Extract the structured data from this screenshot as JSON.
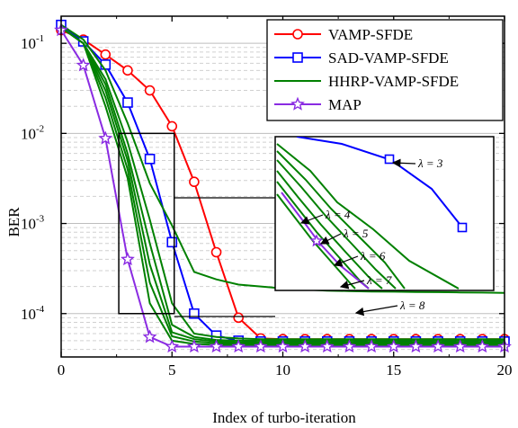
{
  "chart_data": {
    "type": "line",
    "title": "",
    "xlabel": "Index of turbo-iteration",
    "ylabel": "BER",
    "xlim": [
      0,
      20
    ],
    "ylim": [
      3.3e-05,
      0.2
    ],
    "yscale": "log",
    "grid": true,
    "legend_position": "top-right",
    "x_ticks": [
      0,
      5,
      10,
      15,
      20
    ],
    "y_ticks": [
      {
        "value": 0.1,
        "base": "10",
        "exp": "-1"
      },
      {
        "value": 0.01,
        "base": "10",
        "exp": "-2"
      },
      {
        "value": 0.001,
        "base": "10",
        "exp": "-3"
      },
      {
        "value": 0.0001,
        "base": "10",
        "exp": "-4"
      }
    ],
    "series": [
      {
        "name": "VAMP-SFDE",
        "color": "#ff0000",
        "marker": "circle",
        "x": [
          0,
          1,
          2,
          3,
          4,
          5,
          6,
          7,
          8,
          9,
          10,
          11,
          12,
          13,
          14,
          15,
          16,
          17,
          18,
          19,
          20
        ],
        "y": [
          0.14,
          0.11,
          0.075,
          0.05,
          0.03,
          0.012,
          0.0029,
          0.00048,
          9e-05,
          5.3e-05,
          5.2e-05,
          5.2e-05,
          5.2e-05,
          5.2e-05,
          5.2e-05,
          5.2e-05,
          5.2e-05,
          5.2e-05,
          5.2e-05,
          5.2e-05,
          5.2e-05
        ]
      },
      {
        "name": "SAD-VAMP-SFDE",
        "color": "#0000ff",
        "marker": "square",
        "x": [
          0,
          1,
          2,
          3,
          4,
          5,
          6,
          7,
          8,
          9,
          10,
          11,
          12,
          13,
          14,
          15,
          16,
          17,
          18,
          19,
          20
        ],
        "y": [
          0.16,
          0.105,
          0.058,
          0.022,
          0.0052,
          0.00062,
          0.0001,
          5.7e-05,
          5e-05,
          4.9e-05,
          4.9e-05,
          4.9e-05,
          4.9e-05,
          4.9e-05,
          4.9e-05,
          4.9e-05,
          4.9e-05,
          4.9e-05,
          4.9e-05,
          4.9e-05,
          4.9e-05
        ]
      },
      {
        "name": "HHRP-VAMP-SFDE",
        "color": "#008000",
        "marker": "none",
        "x": [
          0,
          1,
          2,
          3,
          4,
          5,
          6,
          7,
          8,
          9,
          10,
          11,
          12,
          13,
          14,
          15,
          16,
          17,
          18,
          19,
          20
        ],
        "y": [
          0.16,
          0.11,
          0.05,
          0.013,
          0.0028,
          0.00095,
          0.00029,
          0.00024,
          0.00021,
          0.0002,
          0.00019,
          0.000185,
          0.00018,
          0.000178,
          0.000176,
          0.000175,
          0.000174,
          0.000173,
          0.000172,
          0.000171,
          0.00017
        ]
      },
      {
        "name": "",
        "color": "#008000",
        "marker": "none",
        "x": [
          0,
          1,
          2,
          3,
          4,
          5,
          6,
          7,
          8,
          9,
          10,
          11,
          12,
          13,
          14,
          15,
          16,
          17,
          18,
          19,
          20
        ],
        "y": [
          0.15,
          0.1,
          0.04,
          0.008,
          0.0011,
          0.00013,
          6e-05,
          5.5e-05,
          5.3e-05,
          5.2e-05,
          5.2e-05,
          5.2e-05,
          5.2e-05,
          5.2e-05,
          5.2e-05,
          5.2e-05,
          5.2e-05,
          5.2e-05,
          5.2e-05,
          5.2e-05,
          5.2e-05
        ]
      },
      {
        "name": "",
        "color": "#008000",
        "marker": "none",
        "x": [
          0,
          1,
          2,
          3,
          4,
          5,
          6,
          7,
          8,
          9,
          10,
          11,
          12,
          13,
          14,
          15,
          16,
          17,
          18,
          19,
          20
        ],
        "y": [
          0.15,
          0.1,
          0.035,
          0.006,
          0.0006,
          7.5e-05,
          5.5e-05,
          5.1e-05,
          5e-05,
          5e-05,
          5e-05,
          5e-05,
          5e-05,
          5e-05,
          5e-05,
          5e-05,
          5e-05,
          5e-05,
          5e-05,
          5e-05,
          5e-05
        ]
      },
      {
        "name": "",
        "color": "#008000",
        "marker": "none",
        "x": [
          0,
          1,
          2,
          3,
          4,
          5,
          6,
          7,
          8,
          9,
          10,
          11,
          12,
          13,
          14,
          15,
          16,
          17,
          18,
          19,
          20
        ],
        "y": [
          0.15,
          0.1,
          0.03,
          0.005,
          0.00035,
          6.2e-05,
          5.2e-05,
          4.9e-05,
          4.8e-05,
          4.8e-05,
          4.8e-05,
          4.8e-05,
          4.8e-05,
          4.8e-05,
          4.8e-05,
          4.8e-05,
          4.8e-05,
          4.8e-05,
          4.8e-05,
          4.8e-05,
          4.8e-05
        ]
      },
      {
        "name": "",
        "color": "#008000",
        "marker": "none",
        "x": [
          0,
          1,
          2,
          3,
          4,
          5,
          6,
          7,
          8,
          9,
          10,
          11,
          12,
          13,
          14,
          15,
          16,
          17,
          18,
          19,
          20
        ],
        "y": [
          0.15,
          0.1,
          0.025,
          0.004,
          0.00022,
          5.6e-05,
          4.9e-05,
          4.7e-05,
          4.7e-05,
          4.7e-05,
          4.7e-05,
          4.7e-05,
          4.7e-05,
          4.7e-05,
          4.7e-05,
          4.7e-05,
          4.7e-05,
          4.7e-05,
          4.7e-05,
          4.7e-05,
          4.7e-05
        ]
      },
      {
        "name": "",
        "color": "#008000",
        "marker": "none",
        "x": [
          0,
          1,
          2,
          3,
          4,
          5,
          6,
          7,
          8,
          9,
          10,
          11,
          12,
          13,
          14,
          15,
          16,
          17,
          18,
          19,
          20
        ],
        "y": [
          0.15,
          0.1,
          0.02,
          0.0032,
          0.00013,
          5e-05,
          4.6e-05,
          4.5e-05,
          4.5e-05,
          4.5e-05,
          4.5e-05,
          4.5e-05,
          4.5e-05,
          4.5e-05,
          4.5e-05,
          4.5e-05,
          4.5e-05,
          4.5e-05,
          4.5e-05,
          4.5e-05,
          4.5e-05
        ]
      },
      {
        "name": "MAP",
        "color": "#8a2be2",
        "marker": "star",
        "x": [
          0,
          1,
          2,
          3,
          4,
          5,
          6,
          7,
          8,
          9,
          10,
          11,
          12,
          13,
          14,
          15,
          16,
          17,
          18,
          19,
          20
        ],
        "y": [
          0.14,
          0.057,
          0.0088,
          0.0004,
          5.5e-05,
          4.3e-05,
          4.3e-05,
          4.3e-05,
          4.3e-05,
          4.3e-05,
          4.3e-05,
          4.3e-05,
          4.3e-05,
          4.3e-05,
          4.3e-05,
          4.3e-05,
          4.3e-05,
          4.3e-05,
          4.3e-05,
          4.3e-05,
          4.3e-05
        ]
      }
    ],
    "zoom_box": {
      "x": [
        2.6,
        5.1
      ],
      "y": [
        0.0001,
        0.01
      ]
    },
    "inset": {
      "lambda_labels": [
        "λ = 3",
        "λ = 4",
        "λ = 5",
        "λ = 6",
        "λ = 7",
        "λ = 8"
      ]
    }
  }
}
